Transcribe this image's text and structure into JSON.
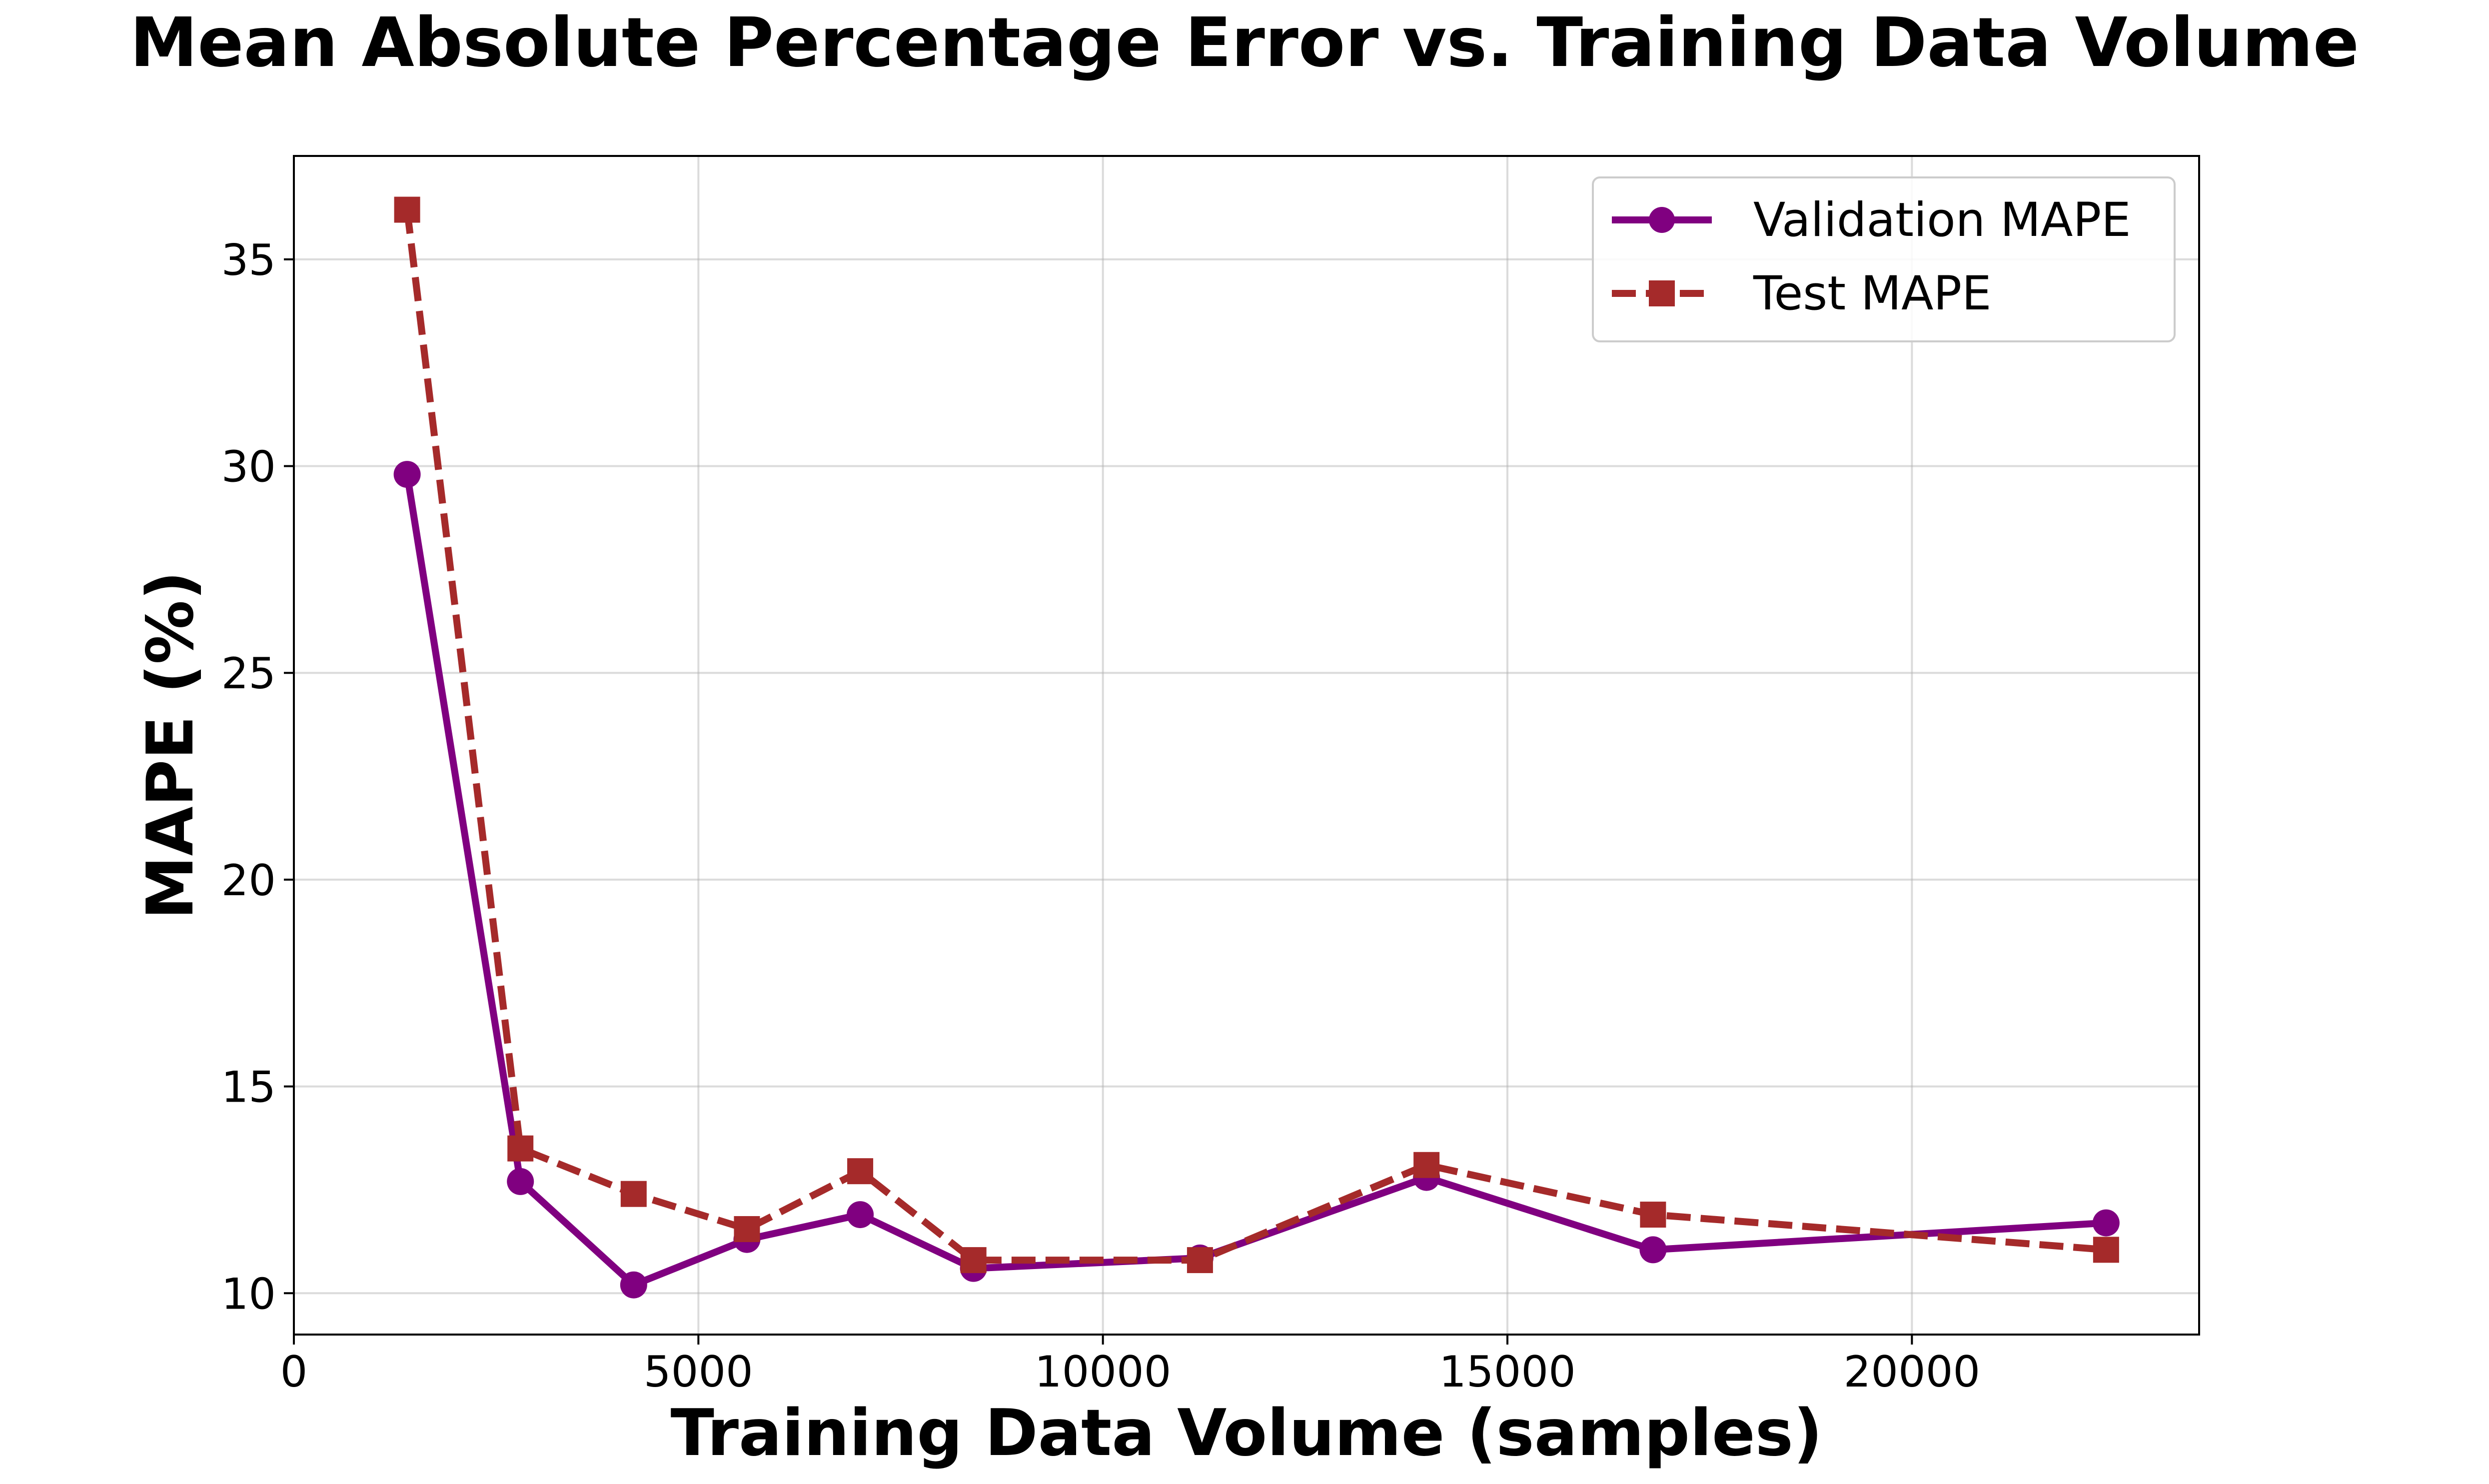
{
  "chart_data": {
    "type": "line",
    "title": "Mean Absolute Percentage Error vs. Training Data Volume",
    "xlabel": "Training Data Volume (samples)",
    "ylabel": "MAPE (%)",
    "xlim": [
      0,
      23550
    ],
    "ylim": [
      9.0,
      37.5
    ],
    "xticks": [
      0,
      5000,
      10000,
      15000,
      20000
    ],
    "yticks": [
      10,
      15,
      20,
      25,
      30,
      35
    ],
    "grid": true,
    "legend_position": "top-right",
    "x": [
      1400,
      2800,
      4200,
      5600,
      7000,
      8400,
      11200,
      14000,
      16800,
      22400
    ],
    "series": [
      {
        "name": "Validation MAPE",
        "values": [
          29.8,
          12.7,
          10.2,
          11.3,
          11.9,
          10.6,
          10.85,
          12.8,
          11.05,
          11.7
        ],
        "color": "#800080",
        "line_style": "solid",
        "marker": "circle"
      },
      {
        "name": "Test MAPE",
        "values": [
          36.2,
          13.5,
          12.4,
          11.55,
          12.95,
          10.8,
          10.8,
          13.1,
          11.9,
          11.05
        ],
        "color": "#A52A2A",
        "line_style": "dashed",
        "marker": "square"
      }
    ]
  }
}
